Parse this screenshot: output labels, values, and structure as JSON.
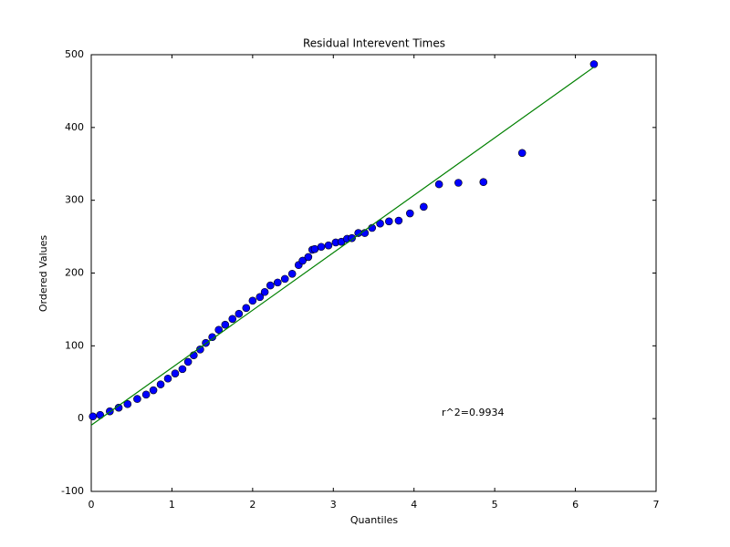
{
  "chart_data": {
    "type": "scatter",
    "title": "Residual Interevent Times",
    "x_label": "Quantiles",
    "y_label": "Ordered Values",
    "annotation": "r^2=0.9934",
    "x": [
      0.02,
      0.11,
      0.23,
      0.34,
      0.45,
      0.57,
      0.68,
      0.77,
      0.86,
      0.95,
      1.04,
      1.13,
      1.2,
      1.27,
      1.35,
      1.42,
      1.5,
      1.58,
      1.66,
      1.75,
      1.83,
      1.92,
      2.0,
      2.09,
      2.15,
      2.22,
      2.31,
      2.4,
      2.49,
      2.57,
      2.62,
      2.69,
      2.74,
      2.77,
      2.85,
      2.94,
      3.03,
      3.1,
      3.17,
      3.23,
      3.31,
      3.39,
      3.48,
      3.58,
      3.69,
      3.81,
      3.95,
      4.12,
      4.31,
      4.55,
      4.86,
      5.34,
      6.23
    ],
    "values": [
      3,
      5,
      10,
      15,
      20,
      27,
      33,
      39,
      47,
      55,
      62,
      68,
      78,
      87,
      95,
      104,
      112,
      122,
      129,
      137,
      144,
      152,
      162,
      167,
      174,
      183,
      187,
      192,
      199,
      211,
      217,
      222,
      232,
      233,
      236,
      238,
      242,
      243,
      247,
      248,
      255,
      255,
      262,
      268,
      271,
      272,
      282,
      291,
      322,
      324,
      325,
      365,
      487
    ],
    "color": "#0000ff",
    "fit_line": {
      "x": [
        0,
        6.23
      ],
      "values": [
        -9,
        483
      ],
      "color": "#008000"
    },
    "xlim": [
      0,
      7
    ],
    "ylim": [
      -100,
      500
    ],
    "xticks": [
      0,
      1,
      2,
      3,
      4,
      5,
      6,
      7
    ],
    "yticks": [
      -100,
      0,
      100,
      200,
      300,
      400,
      500
    ],
    "grid": false
  }
}
